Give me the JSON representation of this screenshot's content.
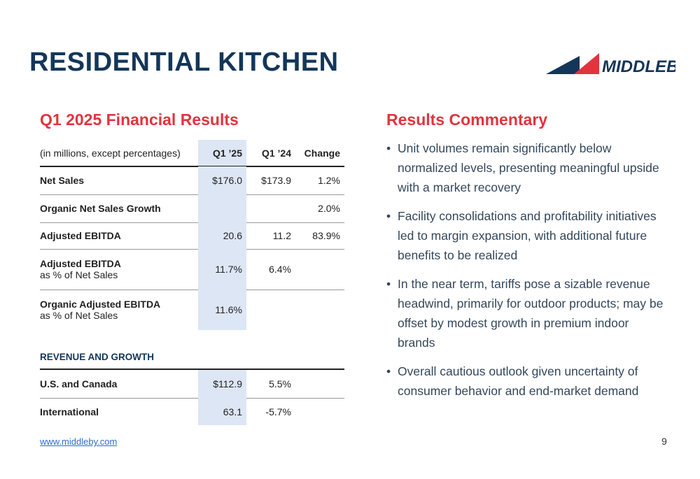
{
  "header": {
    "title": "RESIDENTIAL KITCHEN",
    "logo": "MIDDLEBY"
  },
  "financials": {
    "title": "Q1 2025 Financial Results",
    "columns": [
      "(in millions, except percentages)",
      "Q1 ’25",
      "Q1 ’24",
      "Change"
    ],
    "rows": [
      {
        "label": "Net Sales",
        "cells": [
          "$176.0",
          "$173.9",
          "1.2%"
        ]
      },
      {
        "label": "Organic Net Sales Growth",
        "cells": [
          null,
          null,
          "2.0%"
        ]
      },
      {
        "label": "Adjusted EBITDA",
        "cells": [
          "20.6",
          "11.2",
          "83.9%"
        ]
      },
      {
        "label": "Adjusted EBITDA",
        "sublabel": "as % of Net Sales",
        "cells": [
          "11.7%",
          "6.4%",
          null
        ]
      },
      {
        "label": "Organic Adjusted EBITDA",
        "sublabel": "as % of Net Sales",
        "cells": [
          "11.6%",
          null,
          null
        ]
      }
    ]
  },
  "segments": {
    "title": "REVENUE AND GROWTH",
    "rows": [
      {
        "label": "U.S. and Canada",
        "cells": [
          "$112.9",
          "5.5%",
          null
        ]
      },
      {
        "label": "International",
        "cells": [
          "63.1",
          "-5.7%",
          null
        ]
      }
    ]
  },
  "commentary": {
    "title": "Results Commentary",
    "bullets": [
      "Unit volumes remain significantly below normalized levels, presenting meaningful upside with a market recovery",
      "Facility consolidations and profitability initiatives led to margin expansion, with additional future benefits to be realized",
      "In the near term, tariffs pose a sizable revenue headwind, primarily for outdoor products; may be offset by modest growth in premium indoor brands",
      "Overall cautious outlook given uncertainty of consumer behavior and end-market demand"
    ]
  },
  "footer": {
    "url": "www.middleby.com",
    "page": "9"
  }
}
